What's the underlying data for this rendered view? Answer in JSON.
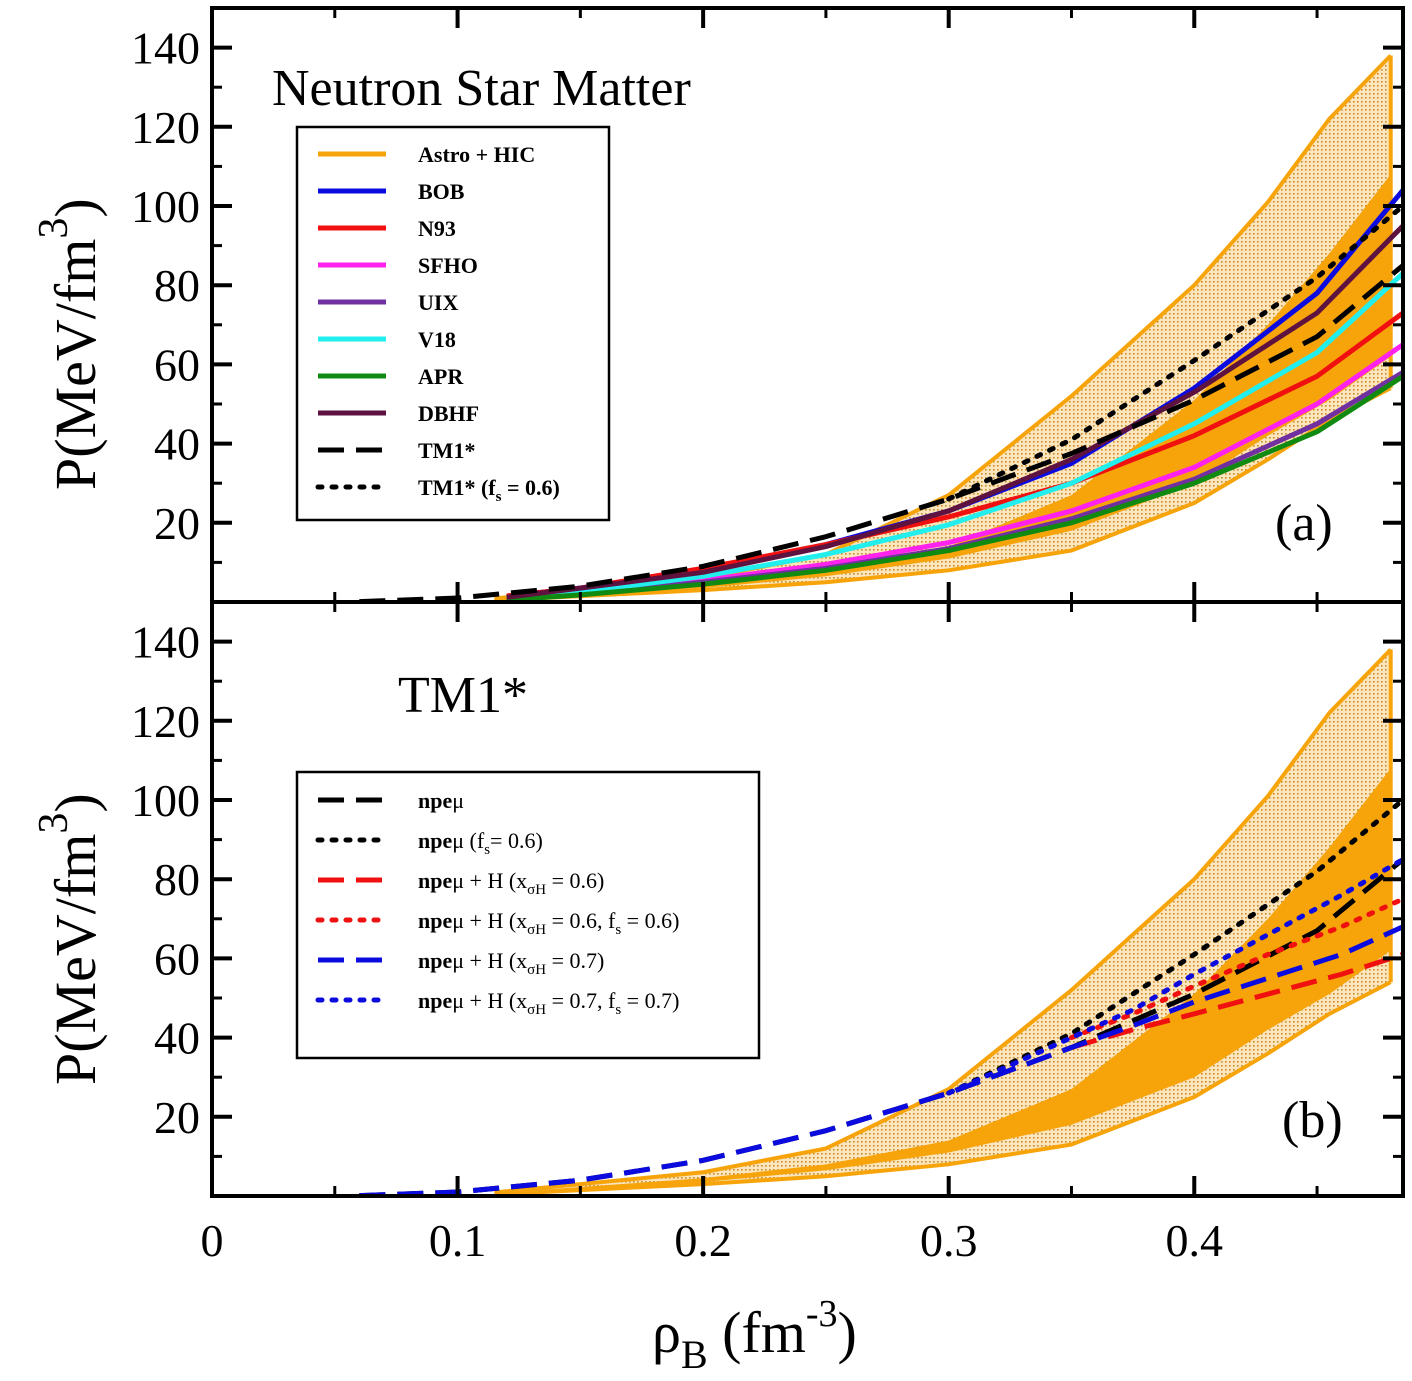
{
  "axes": {
    "xlabel_main": "ρ",
    "xlabel_sub": "B",
    "xlabel_unit_open": " (fm",
    "xlabel_exp": "-3",
    "xlabel_close": ")",
    "ylabel_main": "P(MeV/fm",
    "ylabel_exp": "3",
    "ylabel_close": ")",
    "x_ticks": [
      "0",
      "0.1",
      "0.2",
      "0.3",
      "0.4"
    ],
    "y_ticks": [
      "20",
      "40",
      "60",
      "80",
      "100",
      "120",
      "140"
    ],
    "xlim": [
      0,
      0.485
    ],
    "ylim": [
      0,
      150
    ]
  },
  "colors": {
    "orange": "#f7a30a",
    "blue": "#0b0be0",
    "red": "#f01010",
    "magenta": "#ff22ee",
    "purple": "#7030a0",
    "cyan": "#22eeee",
    "green": "#108a10",
    "maroon": "#5e1240",
    "black": "#000000"
  },
  "chart_data": [
    {
      "type": "line",
      "panel": "a",
      "title": "Neutron Star Matter",
      "panel_label": "(a)",
      "xlabel": "ρB (fm^-3)",
      "ylabel": "P(MeV/fm^3)",
      "bands": [
        {
          "name": "outer_band",
          "x": [
            0.115,
            0.2,
            0.25,
            0.3,
            0.35,
            0.4,
            0.43,
            0.455,
            0.48
          ],
          "lower": [
            0.4,
            3.0,
            5.0,
            8.0,
            13.0,
            25.0,
            36.0,
            46.0,
            54.0
          ],
          "upper": [
            0.9,
            6.0,
            12.0,
            27.0,
            52.0,
            80.0,
            101.0,
            122.0,
            138.0
          ]
        },
        {
          "name": "inner_band",
          "x": [
            0.115,
            0.2,
            0.25,
            0.3,
            0.35,
            0.4,
            0.43,
            0.455,
            0.48
          ],
          "lower": [
            0.5,
            3.5,
            6.5,
            11.0,
            18.0,
            30.0,
            42.0,
            51.0,
            62.0
          ],
          "upper": [
            0.7,
            4.5,
            8.0,
            14.0,
            27.0,
            51.0,
            70.0,
            88.0,
            108.0
          ]
        }
      ],
      "series": [
        {
          "name": "Astro + HIC",
          "style": "solid",
          "color": "orange",
          "x": [],
          "y": []
        },
        {
          "name": "BOB",
          "style": "solid",
          "color": "blue",
          "x": [
            0.12,
            0.15,
            0.2,
            0.25,
            0.3,
            0.35,
            0.4,
            0.45,
            0.485
          ],
          "y": [
            1.5,
            3.5,
            8.0,
            14.5,
            23.0,
            35.0,
            54.0,
            78.0,
            104.0
          ]
        },
        {
          "name": "N93",
          "style": "solid",
          "color": "red",
          "x": [
            0.12,
            0.15,
            0.2,
            0.25,
            0.3,
            0.35,
            0.4,
            0.45,
            0.485
          ],
          "y": [
            1.5,
            3.5,
            8.5,
            14.5,
            21.5,
            30.0,
            42.0,
            57.0,
            73.0
          ]
        },
        {
          "name": "SFHO",
          "style": "solid",
          "color": "magenta",
          "x": [
            0.12,
            0.15,
            0.2,
            0.25,
            0.3,
            0.35,
            0.4,
            0.45,
            0.485
          ],
          "y": [
            0.8,
            2.5,
            5.5,
            9.5,
            15.0,
            23.0,
            34.0,
            50.0,
            65.0
          ]
        },
        {
          "name": "UIX",
          "style": "solid",
          "color": "purple",
          "x": [
            0.12,
            0.15,
            0.2,
            0.25,
            0.3,
            0.35,
            0.4,
            0.45,
            0.485
          ],
          "y": [
            0.6,
            2.0,
            5.0,
            8.5,
            13.5,
            21.0,
            31.0,
            45.0,
            58.0
          ]
        },
        {
          "name": "V18",
          "style": "solid",
          "color": "cyan",
          "x": [
            0.12,
            0.15,
            0.2,
            0.25,
            0.3,
            0.35,
            0.4,
            0.45,
            0.485
          ],
          "y": [
            0.8,
            2.5,
            6.5,
            12.0,
            19.5,
            30.0,
            45.0,
            63.0,
            83.0
          ]
        },
        {
          "name": "APR",
          "style": "solid",
          "color": "green",
          "x": [
            0.12,
            0.15,
            0.2,
            0.25,
            0.3,
            0.35,
            0.4,
            0.45,
            0.485
          ],
          "y": [
            0.5,
            1.8,
            4.5,
            8.0,
            13.0,
            20.0,
            30.0,
            43.0,
            57.0
          ]
        },
        {
          "name": "DBHF",
          "style": "solid",
          "color": "maroon",
          "x": [
            0.12,
            0.15,
            0.2,
            0.25,
            0.3,
            0.35,
            0.4,
            0.45,
            0.485
          ],
          "y": [
            1.2,
            3.5,
            7.5,
            14.0,
            23.0,
            36.0,
            53.0,
            73.0,
            95.0
          ]
        },
        {
          "name": "TM1*",
          "style": "dashed",
          "color": "black",
          "x": [
            0.06,
            0.1,
            0.15,
            0.2,
            0.25,
            0.3,
            0.35,
            0.4,
            0.45,
            0.485
          ],
          "y": [
            0.1,
            1.0,
            4.0,
            9.0,
            16.5,
            26.0,
            37.5,
            51.0,
            67.0,
            85.0
          ]
        },
        {
          "name": "TM1* (f_s = 0.6)",
          "style": "dotted",
          "color": "black",
          "x": [
            0.3,
            0.35,
            0.4,
            0.45,
            0.485
          ],
          "y": [
            26.0,
            41.0,
            61.0,
            82.0,
            100.0
          ]
        }
      ]
    },
    {
      "type": "line",
      "panel": "b",
      "title": "TM1*",
      "panel_label": "(b)",
      "xlabel": "ρB (fm^-3)",
      "ylabel": "P(MeV/fm^3)",
      "bands": [
        {
          "name": "outer_band",
          "x": [
            0.115,
            0.2,
            0.25,
            0.3,
            0.35,
            0.4,
            0.43,
            0.455,
            0.48
          ],
          "lower": [
            0.4,
            3.0,
            5.0,
            8.0,
            13.0,
            25.0,
            36.0,
            46.0,
            54.0
          ],
          "upper": [
            0.9,
            6.0,
            12.0,
            27.0,
            52.0,
            80.0,
            101.0,
            122.0,
            138.0
          ]
        },
        {
          "name": "inner_band",
          "x": [
            0.115,
            0.2,
            0.25,
            0.3,
            0.35,
            0.4,
            0.43,
            0.455,
            0.48
          ],
          "lower": [
            0.5,
            3.5,
            6.5,
            11.0,
            18.0,
            30.0,
            42.0,
            51.0,
            62.0
          ],
          "upper": [
            0.7,
            4.5,
            8.0,
            14.0,
            27.0,
            51.0,
            70.0,
            88.0,
            108.0
          ]
        }
      ],
      "series": [
        {
          "name": "npeμ",
          "style": "dashed",
          "color": "black",
          "x": [
            0.06,
            0.1,
            0.15,
            0.2,
            0.25,
            0.3,
            0.35,
            0.4,
            0.45,
            0.485
          ],
          "y": [
            0.1,
            1.0,
            4.0,
            9.0,
            16.5,
            26.0,
            37.5,
            51.0,
            67.0,
            85.0
          ]
        },
        {
          "name": "npeμ (f_s= 0.6)",
          "style": "dotted",
          "color": "black",
          "x": [
            0.3,
            0.35,
            0.4,
            0.45,
            0.485
          ],
          "y": [
            26.0,
            41.0,
            61.0,
            82.0,
            100.0
          ]
        },
        {
          "name": "npeμ + H (x_σH = 0.6)",
          "style": "dashed",
          "color": "red",
          "x": [
            0.35,
            0.375,
            0.4,
            0.43,
            0.46,
            0.485
          ],
          "y": [
            37.5,
            42.0,
            46.0,
            51.0,
            56.0,
            61.0
          ]
        },
        {
          "name": "npeμ + H (x_σH = 0.6, f_s = 0.6)",
          "style": "dotted",
          "color": "red",
          "x": [
            0.35,
            0.375,
            0.4,
            0.43,
            0.46,
            0.485
          ],
          "y": [
            40.0,
            46.0,
            53.0,
            61.0,
            68.0,
            75.0
          ]
        },
        {
          "name": "npeμ + H (x_σH = 0.7)",
          "style": "dashed",
          "color": "blue",
          "x": [
            0.06,
            0.1,
            0.15,
            0.2,
            0.25,
            0.3,
            0.35,
            0.375,
            0.4,
            0.43,
            0.46,
            0.485
          ],
          "y": [
            0.1,
            1.0,
            4.0,
            9.0,
            16.5,
            26.0,
            37.5,
            43.0,
            49.0,
            55.0,
            61.0,
            68.0
          ]
        },
        {
          "name": "npeμ + H (x_σH = 0.7, f_s = 0.7)",
          "style": "dotted",
          "color": "blue",
          "x": [
            0.3,
            0.35,
            0.375,
            0.4,
            0.43,
            0.46,
            0.485
          ],
          "y": [
            26.0,
            40.0,
            47.0,
            56.0,
            66.0,
            76.0,
            85.0
          ]
        }
      ]
    }
  ],
  "legend_a": {
    "items": [
      {
        "label": "Astro + HIC",
        "sub": "",
        "tail": ""
      },
      {
        "label": "BOB",
        "sub": "",
        "tail": ""
      },
      {
        "label": "N93",
        "sub": "",
        "tail": ""
      },
      {
        "label": "SFHO",
        "sub": "",
        "tail": ""
      },
      {
        "label": "UIX",
        "sub": "",
        "tail": ""
      },
      {
        "label": "V18",
        "sub": "",
        "tail": ""
      },
      {
        "label": "APR",
        "sub": "",
        "tail": ""
      },
      {
        "label": "DBHF",
        "sub": "",
        "tail": ""
      },
      {
        "label": "TM1*",
        "sub": "",
        "tail": ""
      },
      {
        "label": "TM1* (f",
        "sub": "s",
        "tail": " = 0.6)"
      }
    ]
  },
  "legend_b": {
    "items": [
      {
        "bold": "npe",
        "parts": [
          [
            "μ",
            ""
          ]
        ]
      },
      {
        "bold": "npe",
        "parts": [
          [
            "μ (f",
            ""
          ],
          [
            "s",
            "sub"
          ],
          [
            "= 0.6)",
            ""
          ]
        ]
      },
      {
        "bold": "npe",
        "parts": [
          [
            "μ + H (x",
            ""
          ],
          [
            "σH",
            "sub"
          ],
          [
            " = 0.6)",
            ""
          ]
        ]
      },
      {
        "bold": "npe",
        "parts": [
          [
            "μ + H (x",
            ""
          ],
          [
            "σH",
            "sub"
          ],
          [
            " = 0.6, f",
            ""
          ],
          [
            "s",
            "sub"
          ],
          [
            " = 0.6)",
            ""
          ]
        ]
      },
      {
        "bold": "npe",
        "parts": [
          [
            "μ + H (x",
            ""
          ],
          [
            "σH",
            "sub"
          ],
          [
            " = 0.7)",
            ""
          ]
        ]
      },
      {
        "bold": "npe",
        "parts": [
          [
            "μ + H (x",
            ""
          ],
          [
            "σH",
            "sub"
          ],
          [
            " = 0.7, f",
            ""
          ],
          [
            "s",
            "sub"
          ],
          [
            " = 0.7)",
            ""
          ]
        ]
      }
    ]
  }
}
